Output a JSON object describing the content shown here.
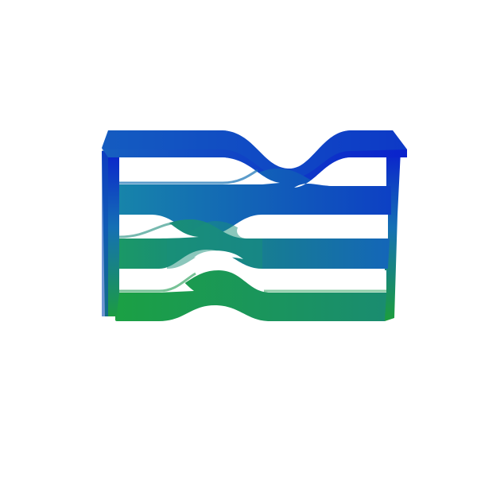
{
  "scene": {
    "background_color": "#ffffff",
    "object": "deformed-lattice-structure",
    "colormap": {
      "top_color": "#0a1fc8",
      "mid_color": "#1578b8",
      "bottom_color": "#1aa040"
    }
  }
}
